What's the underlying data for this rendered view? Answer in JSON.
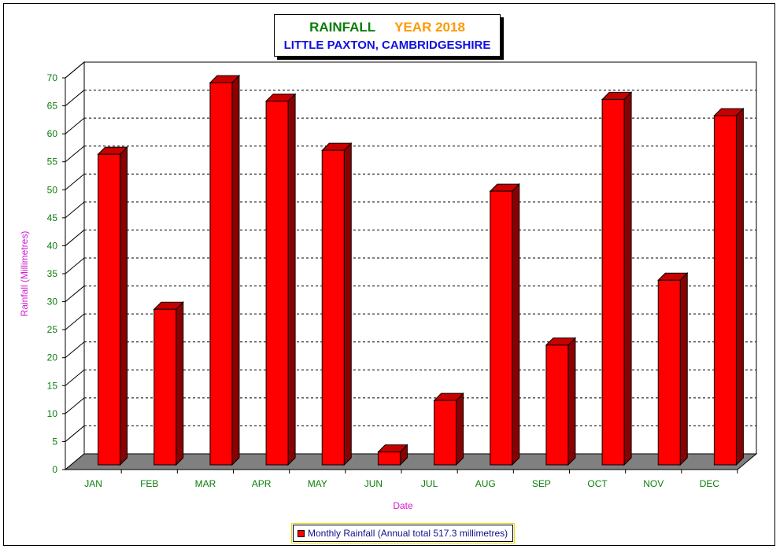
{
  "chart_data": {
    "type": "bar",
    "title": "RAINFALL",
    "title_year": "YEAR 2018",
    "subtitle": "LITTLE PAXTON, CAMBRIDGESHIRE",
    "xlabel": "Date",
    "ylabel": "Rainfall  (Millimetres)",
    "ylim": [
      0,
      70
    ],
    "yticks": [
      0,
      5,
      10,
      15,
      20,
      25,
      30,
      35,
      40,
      45,
      50,
      55,
      60,
      65,
      70
    ],
    "categories": [
      "JAN",
      "FEB",
      "MAR",
      "APR",
      "MAY",
      "JUN",
      "JUL",
      "AUG",
      "SEP",
      "OCT",
      "NOV",
      "DEC"
    ],
    "series": [
      {
        "name": "Monthly Rainfall (Annual total 517.3 millimetres)",
        "values": [
          55.5,
          27.8,
          68.3,
          65.0,
          56.2,
          2.3,
          11.5,
          48.9,
          21.4,
          65.3,
          33.0,
          62.4
        ]
      }
    ],
    "grid": true,
    "legend_position": "bottom-center",
    "colors": {
      "bar_front": "#ff0000",
      "bar_side": "#8b0000",
      "bar_top": "#c80000",
      "floor": "#808080",
      "title": "#0a7d0a",
      "year": "#ff9900",
      "subtitle": "#1010e0",
      "tick_labels": "#0a7d0a",
      "axis_titles": "#d01ad0",
      "legend_text": "#10108a"
    }
  }
}
